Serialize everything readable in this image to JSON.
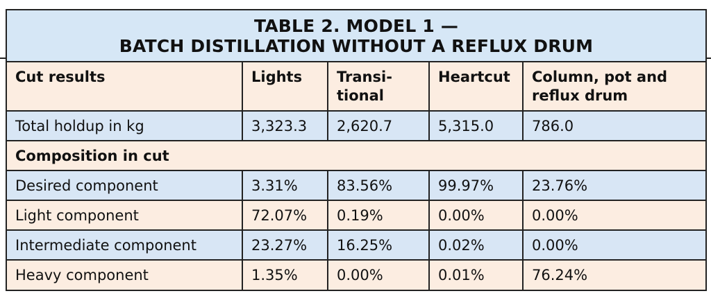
{
  "title": {
    "line1": "TABLE 2. MODEL 1 —",
    "line2": "BATCH DISTILLATION WITHOUT A REFLUX DRUM"
  },
  "columns": [
    "Cut results",
    "Lights",
    "Transi-\ntional",
    "Heartcut",
    "Column, pot and reflux drum"
  ],
  "rows": [
    {
      "label": "Total holdup in kg",
      "values": [
        "3,323.3",
        "2,620.7",
        "5,315.0",
        "786.0"
      ]
    },
    {
      "label": "Composition in cut",
      "values": []
    },
    {
      "label": "Desired component",
      "values": [
        "3.31%",
        "83.56%",
        "99.97%",
        "23.76%"
      ]
    },
    {
      "label": "Light component",
      "values": [
        "72.07%",
        "0.19%",
        "0.00%",
        "0.00%"
      ]
    },
    {
      "label": "Intermediate component",
      "values": [
        "23.27%",
        "16.25%",
        "0.02%",
        "0.00%"
      ]
    },
    {
      "label": "Heavy component",
      "values": [
        "1.35%",
        "0.00%",
        "0.01%",
        "76.24%"
      ]
    }
  ],
  "colors": {
    "blue": "#d8e6f5",
    "peach": "#fcede1",
    "border": "#222222"
  }
}
